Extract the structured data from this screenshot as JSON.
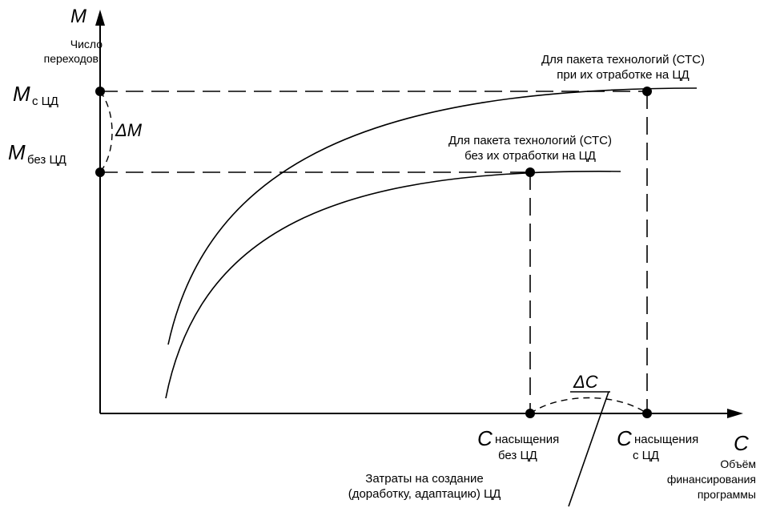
{
  "y_axis": {
    "symbol": "M",
    "label_line1": "Число",
    "label_line2": "переходов",
    "tick_high_symbol": "M",
    "tick_high_sub": "с ЦД",
    "tick_low_symbol": "M",
    "tick_low_sub": "без ЦД",
    "delta": "ΔM"
  },
  "x_axis": {
    "symbol": "C",
    "label_line1": "Объём",
    "label_line2": "финансирования",
    "label_line3": "программы",
    "tick_left_symbol": "C",
    "tick_left_sub1": "насыщения",
    "tick_left_sub2": "без ЦД",
    "tick_right_symbol": "C",
    "tick_right_sub1": "насыщения",
    "tick_right_sub2": "с ЦД",
    "delta": "ΔC"
  },
  "curves": {
    "upper_line1": "Для пакета технологий (СТС)",
    "upper_line2": "при их отработке на ЦД",
    "lower_line1": "Для пакета технологий (СТС)",
    "lower_line2": "без их отработки на ЦД"
  },
  "callout": {
    "line1": "Затраты на создание",
    "line2": "(доработку, адаптацию) ЦД"
  }
}
